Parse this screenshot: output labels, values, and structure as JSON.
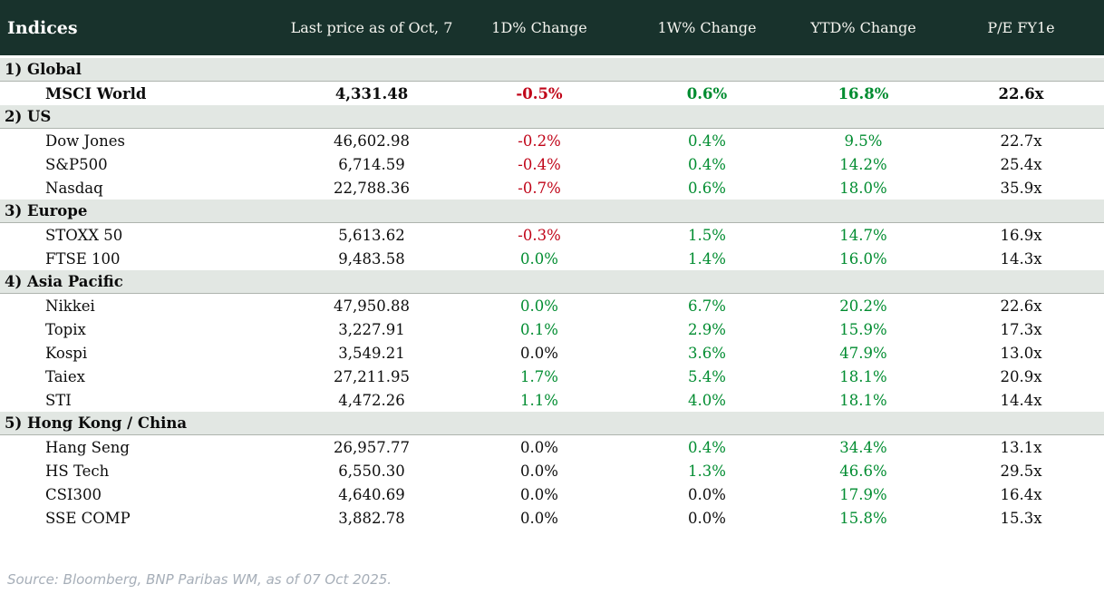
{
  "colors": {
    "header_bg": "#18322c",
    "section_row_bg": "#e2e7e3",
    "positive": "#008c30",
    "negative": "#c00418",
    "text": "#0d0d0d",
    "source_text": "#a6aeb8"
  },
  "chart_data": {
    "type": "table",
    "title": "Indices",
    "columns": [
      "Indices",
      "Last price as of Oct, 7",
      "1D% Change",
      "1W% Change",
      "YTD% Change",
      "P/E FY1e"
    ],
    "sections": [
      {
        "label": "1) Global",
        "rows": [
          {
            "name": "MSCI World",
            "bold": true,
            "values": [
              "4,331.48",
              "-0.5%",
              "0.6%",
              "16.8%",
              "22.6x"
            ],
            "colors": [
              "dark",
              "neg",
              "pos",
              "pos",
              "dark"
            ]
          }
        ]
      },
      {
        "label": "2) US",
        "rows": [
          {
            "name": "Dow Jones",
            "values": [
              "46,602.98",
              "-0.2%",
              "0.4%",
              "9.5%",
              "22.7x"
            ],
            "colors": [
              "dark",
              "neg",
              "pos",
              "pos",
              "dark"
            ]
          },
          {
            "name": "S&P500",
            "values": [
              "6,714.59",
              "-0.4%",
              "0.4%",
              "14.2%",
              "25.4x"
            ],
            "colors": [
              "dark",
              "neg",
              "pos",
              "pos",
              "dark"
            ]
          },
          {
            "name": "Nasdaq",
            "values": [
              "22,788.36",
              "-0.7%",
              "0.6%",
              "18.0%",
              "35.9x"
            ],
            "colors": [
              "dark",
              "neg",
              "pos",
              "pos",
              "dark"
            ]
          }
        ]
      },
      {
        "label": "3) Europe",
        "rows": [
          {
            "name": "STOXX 50",
            "values": [
              "5,613.62",
              "-0.3%",
              "1.5%",
              "14.7%",
              "16.9x"
            ],
            "colors": [
              "dark",
              "neg",
              "pos",
              "pos",
              "dark"
            ]
          },
          {
            "name": "FTSE 100",
            "values": [
              "9,483.58",
              "0.0%",
              "1.4%",
              "16.0%",
              "14.3x"
            ],
            "colors": [
              "dark",
              "pos",
              "pos",
              "pos",
              "dark"
            ]
          }
        ]
      },
      {
        "label": "4) Asia Pacific",
        "rows": [
          {
            "name": "Nikkei",
            "values": [
              "47,950.88",
              "0.0%",
              "6.7%",
              "20.2%",
              "22.6x"
            ],
            "colors": [
              "dark",
              "pos",
              "pos",
              "pos",
              "dark"
            ]
          },
          {
            "name": "Topix",
            "values": [
              "3,227.91",
              "0.1%",
              "2.9%",
              "15.9%",
              "17.3x"
            ],
            "colors": [
              "dark",
              "pos",
              "pos",
              "pos",
              "dark"
            ]
          },
          {
            "name": "Kospi",
            "values": [
              "3,549.21",
              "0.0%",
              "3.6%",
              "47.9%",
              "13.0x"
            ],
            "colors": [
              "dark",
              "dark",
              "pos",
              "pos",
              "dark"
            ]
          },
          {
            "name": "Taiex",
            "values": [
              "27,211.95",
              "1.7%",
              "5.4%",
              "18.1%",
              "20.9x"
            ],
            "colors": [
              "dark",
              "pos",
              "pos",
              "pos",
              "dark"
            ]
          },
          {
            "name": "STI",
            "values": [
              "4,472.26",
              "1.1%",
              "4.0%",
              "18.1%",
              "14.4x"
            ],
            "colors": [
              "dark",
              "pos",
              "pos",
              "pos",
              "dark"
            ]
          }
        ]
      },
      {
        "label": "5) Hong Kong / China",
        "rows": [
          {
            "name": "Hang Seng",
            "values": [
              "26,957.77",
              "0.0%",
              "0.4%",
              "34.4%",
              "13.1x"
            ],
            "colors": [
              "dark",
              "dark",
              "pos",
              "pos",
              "dark"
            ]
          },
          {
            "name": "HS Tech",
            "values": [
              "6,550.30",
              "0.0%",
              "1.3%",
              "46.6%",
              "29.5x"
            ],
            "colors": [
              "dark",
              "dark",
              "pos",
              "pos",
              "dark"
            ]
          },
          {
            "name": "CSI300",
            "values": [
              "4,640.69",
              "0.0%",
              "0.0%",
              "17.9%",
              "16.4x"
            ],
            "colors": [
              "dark",
              "dark",
              "dark",
              "pos",
              "dark"
            ]
          },
          {
            "name": "SSE COMP",
            "values": [
              "3,882.78",
              "0.0%",
              "0.0%",
              "15.8%",
              "15.3x"
            ],
            "colors": [
              "dark",
              "dark",
              "dark",
              "pos",
              "dark"
            ]
          }
        ]
      }
    ]
  },
  "footer": {
    "source_text": "Source: Bloomberg, BNP Paribas WM, as of 07 Oct 2025."
  }
}
